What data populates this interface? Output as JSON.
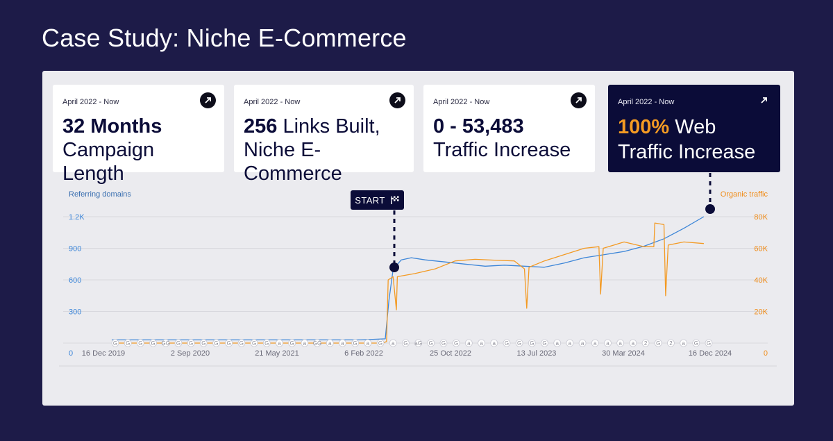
{
  "page": {
    "title": "Case Study: Niche E-Commerce"
  },
  "cards": [
    {
      "date": "April 2022 - Now",
      "strong": "32 Months",
      "text": "Campaign Length"
    },
    {
      "date": "April 2022 - Now",
      "strong": "256",
      "text": " Links Built,",
      "line2": "Niche E-Commerce"
    },
    {
      "date": "April 2022 - Now",
      "strong": "0 - 53,483",
      "text": "Traffic Increase"
    },
    {
      "date": "April 2022 - Now",
      "strong": "100%",
      "text": " Web",
      "line2": "Traffic Increase"
    }
  ],
  "start_marker": {
    "label": "START",
    "icon": "checkered-flag-icon"
  },
  "colors": {
    "referring": "#3d86d8",
    "traffic": "#f39a23",
    "navy": "#0b0c38",
    "background": "#1d1b48"
  },
  "chart_data": {
    "type": "line",
    "x_ticks": [
      "16 Dec 2019",
      "2 Sep 2020",
      "21 May 2021",
      "6 Feb 2022",
      "25 Oct 2022",
      "13 Jul 2023",
      "30 Mar 2024",
      "16 Dec 2024"
    ],
    "y_left": {
      "label": "Referring domains",
      "ticks": [
        "0",
        "300",
        "600",
        "900",
        "1.2K"
      ],
      "range": [
        0,
        1200
      ]
    },
    "y_right": {
      "label": "Organic traffic",
      "ticks": [
        "0",
        "20K",
        "40K",
        "60K",
        "80K"
      ],
      "range": [
        0,
        80000
      ]
    },
    "x_range": [
      "2019-12-16",
      "2024-12-16"
    ],
    "series": [
      {
        "name": "Referring domains",
        "axis": "left",
        "points": [
          [
            "2019-12-16",
            30
          ],
          [
            "2020-06-01",
            30
          ],
          [
            "2021-01-01",
            30
          ],
          [
            "2021-09-01",
            30
          ],
          [
            "2022-01-15",
            30
          ],
          [
            "2022-04-01",
            40
          ],
          [
            "2022-04-12",
            400
          ],
          [
            "2022-04-25",
            700
          ],
          [
            "2022-05-20",
            790
          ],
          [
            "2022-06-20",
            810
          ],
          [
            "2022-08-01",
            790
          ],
          [
            "2022-10-01",
            770
          ],
          [
            "2022-12-01",
            750
          ],
          [
            "2023-02-01",
            730
          ],
          [
            "2023-04-01",
            740
          ],
          [
            "2023-06-01",
            730
          ],
          [
            "2023-08-01",
            720
          ],
          [
            "2023-10-01",
            760
          ],
          [
            "2023-12-01",
            810
          ],
          [
            "2024-02-01",
            840
          ],
          [
            "2024-04-01",
            870
          ],
          [
            "2024-06-01",
            920
          ],
          [
            "2024-08-01",
            990
          ],
          [
            "2024-10-01",
            1090
          ],
          [
            "2024-12-01",
            1200
          ]
        ]
      },
      {
        "name": "Organic traffic",
        "axis": "right",
        "points": [
          [
            "2019-12-16",
            0
          ],
          [
            "2022-03-25",
            0
          ],
          [
            "2022-04-05",
            1000
          ],
          [
            "2022-04-10",
            40000
          ],
          [
            "2022-04-25",
            42000
          ],
          [
            "2022-05-05",
            21000
          ],
          [
            "2022-05-08",
            42000
          ],
          [
            "2022-07-01",
            44000
          ],
          [
            "2022-09-01",
            47000
          ],
          [
            "2022-11-01",
            52000
          ],
          [
            "2023-01-01",
            53000
          ],
          [
            "2023-03-01",
            52500
          ],
          [
            "2023-05-01",
            52000
          ],
          [
            "2023-06-01",
            47000
          ],
          [
            "2023-06-08",
            22000
          ],
          [
            "2023-06-15",
            48000
          ],
          [
            "2023-08-01",
            52000
          ],
          [
            "2023-10-01",
            56000
          ],
          [
            "2023-12-01",
            60000
          ],
          [
            "2024-01-15",
            61000
          ],
          [
            "2024-01-20",
            31000
          ],
          [
            "2024-01-28",
            60000
          ],
          [
            "2024-04-01",
            64000
          ],
          [
            "2024-06-01",
            61000
          ],
          [
            "2024-07-01",
            61000
          ],
          [
            "2024-07-04",
            76000
          ],
          [
            "2024-08-01",
            75000
          ],
          [
            "2024-08-06",
            30000
          ],
          [
            "2024-08-14",
            62000
          ],
          [
            "2024-10-01",
            64000
          ],
          [
            "2024-12-01",
            63000
          ]
        ]
      }
    ],
    "annotation_markers": [
      "G",
      "G",
      "G",
      "G",
      "GG",
      "G",
      "G",
      "G",
      "G",
      "G",
      "G",
      "G",
      "G",
      "a",
      "G",
      "a",
      "GG",
      "a",
      "a",
      "G",
      "a",
      "G",
      "a",
      "G",
      "aG",
      "G",
      "G",
      "G",
      "a",
      "a",
      "a",
      "G",
      "G",
      "G",
      "G",
      "a",
      "a",
      "a",
      "a",
      "a",
      "a",
      "a",
      "2",
      "G",
      "2",
      "a",
      "G",
      "G"
    ]
  }
}
